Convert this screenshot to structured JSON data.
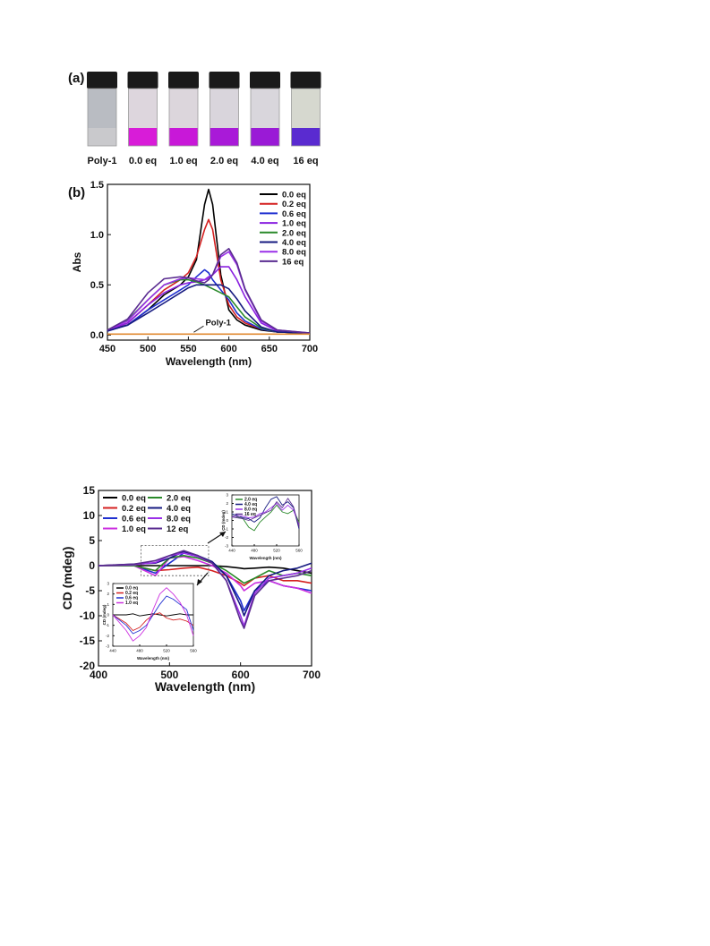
{
  "panel_a": {
    "label": "(a)",
    "vials": [
      {
        "label": "Poly-1",
        "liquid": "#c9c9cc",
        "glass": "#b9bcc2"
      },
      {
        "label": "0.0 eq",
        "liquid": "#d81cd8",
        "glass": "#ddd6dd"
      },
      {
        "label": "1.0 eq",
        "liquid": "#c818d8",
        "glass": "#dcd6dc"
      },
      {
        "label": "2.0 eq",
        "liquid": "#a91ad8",
        "glass": "#d9d5dc"
      },
      {
        "label": "4.0 eq",
        "liquid": "#9a1ad6",
        "glass": "#d9d6dc"
      },
      {
        "label": "16 eq",
        "liquid": "#5a2bd0",
        "glass": "#d6d8cf"
      }
    ]
  },
  "chart_data": [
    {
      "type": "line",
      "panel_label": "(b)",
      "xlabel": "Wavelength (nm)",
      "ylabel": "Abs",
      "xlim": [
        450,
        700
      ],
      "ylim": [
        -0.05,
        1.5
      ],
      "xticks": [
        "450",
        "500",
        "550",
        "600",
        "650",
        "700"
      ],
      "yticks": [
        "0.0",
        "0.5",
        "1.0",
        "1.5"
      ],
      "x": [
        450,
        475,
        500,
        520,
        540,
        550,
        560,
        570,
        575,
        580,
        590,
        600,
        610,
        620,
        640,
        660,
        700
      ],
      "series": [
        {
          "name": "0.0 eq",
          "color": "#000000",
          "values": [
            0.05,
            0.1,
            0.25,
            0.4,
            0.5,
            0.58,
            0.75,
            1.3,
            1.45,
            1.3,
            0.6,
            0.25,
            0.15,
            0.1,
            0.05,
            0.03,
            0.02
          ]
        },
        {
          "name": "0.2 eq",
          "color": "#d42020",
          "values": [
            0.05,
            0.12,
            0.3,
            0.45,
            0.55,
            0.62,
            0.78,
            1.05,
            1.15,
            1.05,
            0.55,
            0.3,
            0.18,
            0.12,
            0.06,
            0.03,
            0.02
          ]
        },
        {
          "name": "0.6 eq",
          "color": "#2030d0",
          "values": [
            0.04,
            0.1,
            0.25,
            0.35,
            0.45,
            0.5,
            0.58,
            0.65,
            0.62,
            0.55,
            0.45,
            0.35,
            0.22,
            0.14,
            0.06,
            0.03,
            0.02
          ]
        },
        {
          "name": "1.0 eq",
          "color": "#8a20e0",
          "values": [
            0.05,
            0.12,
            0.3,
            0.42,
            0.5,
            0.52,
            0.53,
            0.55,
            0.58,
            0.6,
            0.68,
            0.68,
            0.55,
            0.38,
            0.12,
            0.04,
            0.02
          ]
        },
        {
          "name": "2.0 eq",
          "color": "#2a8a2a",
          "values": [
            0.05,
            0.15,
            0.35,
            0.5,
            0.55,
            0.55,
            0.53,
            0.5,
            0.48,
            0.46,
            0.42,
            0.38,
            0.28,
            0.18,
            0.07,
            0.03,
            0.02
          ]
        },
        {
          "name": "4.0 eq",
          "color": "#161a80",
          "values": [
            0.04,
            0.1,
            0.22,
            0.32,
            0.42,
            0.47,
            0.5,
            0.5,
            0.5,
            0.5,
            0.5,
            0.46,
            0.36,
            0.24,
            0.08,
            0.03,
            0.02
          ]
        },
        {
          "name": "8.0 eq",
          "color": "#9a30e8",
          "values": [
            0.05,
            0.14,
            0.35,
            0.5,
            0.56,
            0.57,
            0.56,
            0.55,
            0.56,
            0.6,
            0.78,
            0.83,
            0.7,
            0.45,
            0.14,
            0.05,
            0.02
          ]
        },
        {
          "name": "16 eq",
          "color": "#5a2c90",
          "values": [
            0.05,
            0.16,
            0.42,
            0.56,
            0.58,
            0.57,
            0.54,
            0.52,
            0.55,
            0.6,
            0.8,
            0.86,
            0.72,
            0.46,
            0.15,
            0.05,
            0.02
          ]
        },
        {
          "name": "Poly-1",
          "color": "#e08a30",
          "values": [
            0.01,
            0.01,
            0.01,
            0.01,
            0.01,
            0.01,
            0.01,
            0.01,
            0.01,
            0.01,
            0.01,
            0.01,
            0.01,
            0.01,
            0.01,
            0.01,
            0.01
          ]
        }
      ],
      "annotations": [
        {
          "text": "Poly-1",
          "x": 560,
          "y": 0.01
        }
      ]
    },
    {
      "type": "line",
      "xlabel": "Wavelength (nm)",
      "ylabel": "CD (mdeg)",
      "xlim": [
        400,
        700
      ],
      "ylim": [
        -20,
        15
      ],
      "xticks": [
        "400",
        "500",
        "600",
        "700"
      ],
      "yticks": [
        "15",
        "10",
        "5",
        "0",
        "-5",
        "-10",
        "-15",
        "-20"
      ],
      "x": [
        400,
        450,
        480,
        500,
        520,
        540,
        560,
        580,
        600,
        605,
        620,
        640,
        660,
        680,
        700
      ],
      "series": [
        {
          "name": "0.0 eq",
          "color": "#000000",
          "values": [
            0,
            0,
            0,
            0,
            0,
            0,
            0,
            -0.2,
            -0.5,
            -0.6,
            -0.5,
            -0.3,
            -0.5,
            -1,
            -1.5
          ]
        },
        {
          "name": "0.2 eq",
          "color": "#d42020",
          "values": [
            0,
            0,
            -1,
            -0.8,
            -0.5,
            -0.3,
            -1,
            -2,
            -3.5,
            -4,
            -2.5,
            -2,
            -3,
            -3,
            -3.5
          ]
        },
        {
          "name": "0.6 eq",
          "color": "#2030d0",
          "values": [
            0,
            0,
            -1.5,
            0.5,
            2.5,
            1.8,
            0.5,
            -2,
            -7,
            -9,
            -5,
            -3,
            -4,
            -4.5,
            -5
          ]
        },
        {
          "name": "1.0 eq",
          "color": "#cc30e0",
          "values": [
            0,
            0,
            -2,
            1.5,
            1.8,
            1,
            0,
            -1.5,
            -4,
            -5,
            -3.5,
            -3,
            -4,
            -4.5,
            -5.5
          ]
        },
        {
          "name": "2.0 eq",
          "color": "#2a8a2a",
          "values": [
            0,
            0,
            -1,
            1.5,
            2,
            1.5,
            0.5,
            -1,
            -3,
            -3.5,
            -2.5,
            -1,
            -2,
            -1.5,
            -2
          ]
        },
        {
          "name": "4.0 eq",
          "color": "#161a80",
          "values": [
            0,
            0.3,
            0.5,
            1.5,
            2.8,
            2,
            0.8,
            -2,
            -8,
            -10,
            -5,
            -2,
            -1,
            -0.5,
            0.5
          ]
        },
        {
          "name": "8.0 eq",
          "color": "#9a30e8",
          "values": [
            0,
            0.2,
            0.6,
            2,
            2.5,
            1.8,
            0.5,
            -3,
            -10,
            -12,
            -5.5,
            -2.5,
            -2,
            -1.5,
            -0.5
          ]
        },
        {
          "name": "12 eq",
          "color": "#5a2c90",
          "values": [
            0,
            0.3,
            1,
            2,
            3,
            2,
            0.5,
            -3,
            -11,
            -12.5,
            -6,
            -3,
            -2.5,
            -2,
            -1
          ]
        }
      ],
      "insets": [
        {
          "xlabel": "Wavelength (nm)",
          "ylabel": "CD (mdeg)",
          "xlim": [
            440,
            560
          ],
          "ylim": [
            -3,
            3
          ],
          "xticks": [
            "440",
            "480",
            "520",
            "560"
          ],
          "yticks": [
            "3",
            "2",
            "1",
            "0",
            "-1",
            "-2",
            "-3"
          ],
          "x": [
            440,
            460,
            470,
            480,
            490,
            500,
            510,
            520,
            530,
            540,
            550,
            560
          ],
          "series": [
            {
              "name": "2.0 eq",
              "color": "#2a8a2a",
              "values": [
                0.6,
                0.2,
                -0.8,
                -1.2,
                -0.2,
                0.4,
                1.0,
                1.8,
                1.0,
                0.8,
                1.2,
                -0.2
              ]
            },
            {
              "name": "4.0 eq",
              "color": "#161a80",
              "values": [
                0.8,
                0.3,
                0.2,
                -0.2,
                0.3,
                1.5,
                2.5,
                2.8,
                1.8,
                2.2,
                1.5,
                -1.0
              ]
            },
            {
              "name": "8.0 eq",
              "color": "#9a30e8",
              "values": [
                0.5,
                0.5,
                0.3,
                0.4,
                0.8,
                1.0,
                1.5,
                2.0,
                1.2,
                1.8,
                1.2,
                -0.5
              ]
            },
            {
              "name": "16 eq",
              "color": "#5a2c90",
              "values": [
                0.4,
                0.2,
                0.0,
                0.3,
                0.6,
                0.9,
                1.2,
                2.2,
                1.5,
                2.6,
                1.6,
                -0.8
              ]
            }
          ]
        },
        {
          "xlabel": "Wavelength (nm)",
          "ylabel": "CD (mdeg)",
          "xlim": [
            440,
            560
          ],
          "ylim": [
            -3,
            3
          ],
          "xticks": [
            "440",
            "480",
            "520",
            "560"
          ],
          "yticks": [
            "3",
            "2",
            "1",
            "0",
            "-1",
            "-2",
            "-3"
          ],
          "x": [
            440,
            460,
            470,
            480,
            490,
            500,
            510,
            520,
            530,
            540,
            550,
            560
          ],
          "series": [
            {
              "name": "0.0 eq",
              "color": "#000000",
              "values": [
                0.0,
                0.0,
                0.1,
                -0.1,
                0.0,
                0.1,
                0.0,
                -0.1,
                0.0,
                0.1,
                0.0,
                0.0
              ]
            },
            {
              "name": "0.2 eq",
              "color": "#d42020",
              "values": [
                0.0,
                -0.8,
                -1.5,
                -1.2,
                -0.5,
                0.0,
                0.2,
                -0.3,
                -0.5,
                -0.4,
                -0.6,
                -1.0
              ]
            },
            {
              "name": "0.6 eq",
              "color": "#2030d0",
              "values": [
                0.0,
                -1.0,
                -1.8,
                -1.5,
                -1.0,
                0.0,
                1.0,
                1.8,
                1.5,
                1.0,
                0.5,
                -1.5
              ]
            },
            {
              "name": "1.0 eq",
              "color": "#cc30e0",
              "values": [
                0.0,
                -1.5,
                -2.5,
                -2.0,
                -1.2,
                0.5,
                2.0,
                2.6,
                2.0,
                1.2,
                0.0,
                -2.0
              ]
            }
          ]
        }
      ]
    }
  ]
}
